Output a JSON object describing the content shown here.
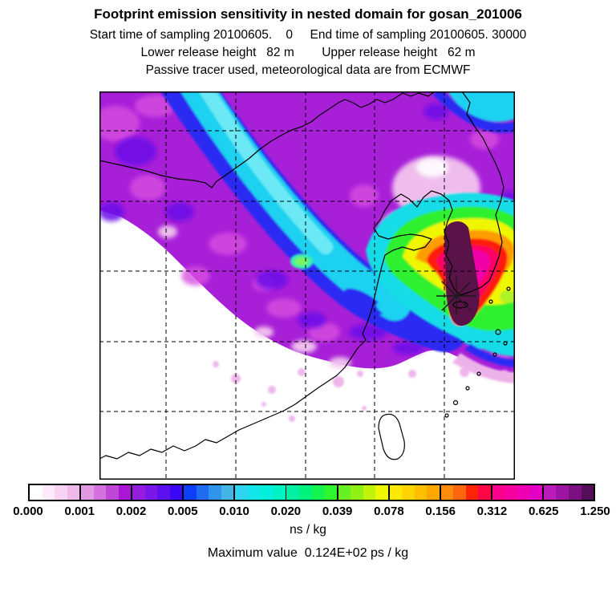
{
  "header": {
    "title": "Footprint emission sensitivity in nested domain for gosan_201006",
    "sampling_line": "Start time of sampling 20100605.    0     End time of sampling 20100605. 30000",
    "release_line": "Lower release height   82 m        Upper release height   62 m",
    "tracer_line": "Passive tracer used, meteorological data are from ECMWF"
  },
  "colorbar": {
    "tick_labels": [
      "0.000",
      "0.001",
      "0.002",
      "0.005",
      "0.010",
      "0.020",
      "0.039",
      "0.078",
      "0.156",
      "0.312",
      "0.625",
      "1.250"
    ],
    "units_label": "ns / kg",
    "segments": [
      {
        "from": "0.000",
        "to": "0.001",
        "colors": [
          "#ffffff",
          "#fdeafa",
          "#f8d3f3",
          "#f0b9ea"
        ]
      },
      {
        "from": "0.001",
        "to": "0.002",
        "colors": [
          "#e398e3",
          "#d371dd",
          "#bf46d7",
          "#aa16d6"
        ]
      },
      {
        "from": "0.002",
        "to": "0.005",
        "colors": [
          "#951ede",
          "#7b17e6",
          "#5c10ee",
          "#3b08f6"
        ]
      },
      {
        "from": "0.005",
        "to": "0.010",
        "colors": [
          "#0d3efa",
          "#1f6cf2",
          "#3194ec",
          "#45b4e6"
        ]
      },
      {
        "from": "0.010",
        "to": "0.020",
        "colors": [
          "#2fd4f0",
          "#12e6ea",
          "#00f0dc",
          "#00f2c4"
        ]
      },
      {
        "from": "0.020",
        "to": "0.039",
        "colors": [
          "#00f0a4",
          "#00f27c",
          "#12f450",
          "#2ef62e"
        ]
      },
      {
        "from": "0.039",
        "to": "0.078",
        "colors": [
          "#66f024",
          "#90f214",
          "#c0f40a",
          "#eef600"
        ]
      },
      {
        "from": "0.078",
        "to": "0.156",
        "colors": [
          "#fce800",
          "#ffd400",
          "#ffbe00",
          "#ffa800"
        ]
      },
      {
        "from": "0.156",
        "to": "0.312",
        "colors": [
          "#ff8c0a",
          "#ff660d",
          "#ff2405",
          "#ff0646"
        ]
      },
      {
        "from": "0.312",
        "to": "0.625",
        "colors": [
          "#ff008c",
          "#f800a0",
          "#ee00b2",
          "#e200c2"
        ]
      },
      {
        "from": "0.625",
        "to": "1.250",
        "colors": [
          "#ba1cba",
          "#9e14a2",
          "#7c1082",
          "#540e58"
        ]
      }
    ]
  },
  "footer": {
    "max_value_label": "Maximum value  0.124E+02 ps / kg"
  },
  "chart_data": {
    "type": "heatmap",
    "title": "Footprint emission sensitivity in nested domain for gosan_201006",
    "station": "gosan_201006",
    "start_time_of_sampling": "20100605. 0",
    "end_time_of_sampling": "20100605. 30000",
    "lower_release_height_m": 82,
    "upper_release_height_m": 62,
    "tracer_note": "Passive tracer used, meteorological data are from ECMWF",
    "units": "ns / kg",
    "maximum_value": "0.124E+02 ps / kg",
    "levels_ns_per_kg": [
      0.0,
      0.001,
      0.002,
      0.005,
      0.01,
      0.02,
      0.039,
      0.078,
      0.156,
      0.312,
      0.625,
      1.25
    ],
    "colormap_order": "white -> pink -> purple -> blue -> cyan -> green -> yellow -> orange -> red -> magenta -> dark purple",
    "legend_position": "bottom horizontal colorbar",
    "grid": "dashed latitude/longitude lines, 5 vertical and 5 horizontal inside frame",
    "region": "East Asia nested domain (China, Mongolia border, Korea, Taiwan, Yellow Sea)",
    "features": [
      "broad purple/magenta field of low sensitivity (0.001-0.005) over northern half of domain",
      "diagonal cyan band (0.010-0.020) from top-left toward domain center",
      "small green patch inside cyan band near center",
      "high-sensitivity hotspot over Korean peninsula: nested cyan, green, yellow, orange, red, magenta rings",
      "dark purple maximum core (>0.625) extending south over Jeju toward receptor",
      "asterisk receptor marker at Gosan site southwest of the dark core",
      "white (near-zero) area over southern China and lower-left of domain",
      "coastlines and country borders drawn in black"
    ]
  }
}
